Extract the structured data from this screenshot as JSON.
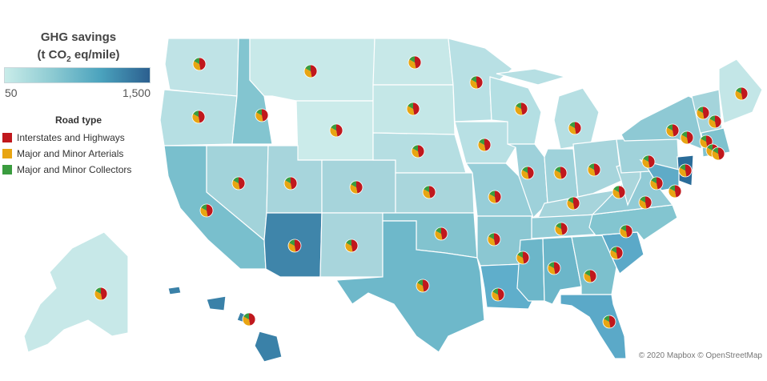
{
  "legend": {
    "title": "GHG savings",
    "subtitle_pre": "(t CO",
    "subtitle_sub": "2",
    "subtitle_post": " eq/mile)",
    "min_label": "50",
    "max_label": "1,500",
    "min_value": 50,
    "max_value": 1500,
    "gradient_colors": [
      "#c9ece9",
      "#8ccad2",
      "#4aa2bd",
      "#2c5f8f"
    ]
  },
  "road_type": {
    "title": "Road type",
    "items": [
      {
        "label": "Interstates and Highways",
        "color": "#c0181d"
      },
      {
        "label": "Major and Minor Arterials",
        "color": "#e8a512"
      },
      {
        "label": "Major and Minor Collectors",
        "color": "#3a9c3f"
      }
    ]
  },
  "map_colors": {
    "border": "#ffffff",
    "water": "#ffffff"
  },
  "credit": "© 2020 Mapbox © OpenStreetMap"
}
